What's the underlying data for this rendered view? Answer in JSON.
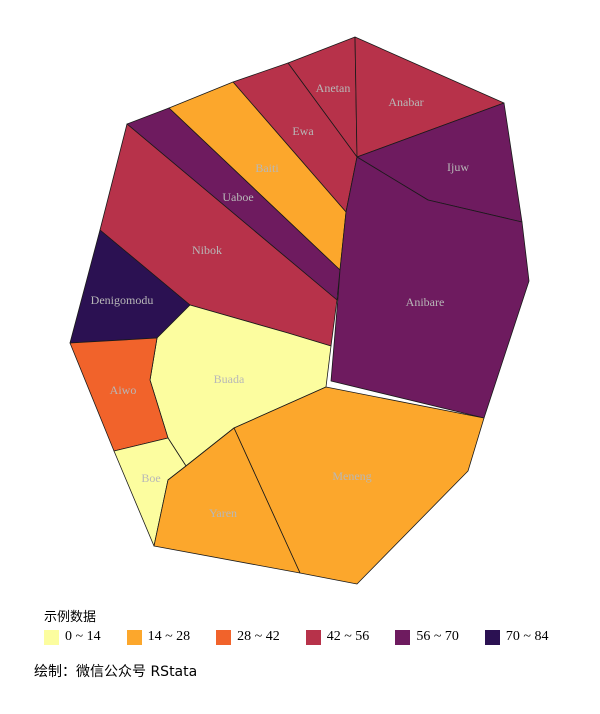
{
  "map": {
    "regions": [
      {
        "name": "Anetan",
        "class": 3
      },
      {
        "name": "Anabar",
        "class": 3
      },
      {
        "name": "Ewa",
        "class": 3
      },
      {
        "name": "Ijuw",
        "class": 4
      },
      {
        "name": "Baiti",
        "class": 1
      },
      {
        "name": "Uaboe",
        "class": 4
      },
      {
        "name": "Nibok",
        "class": 3
      },
      {
        "name": "Anibare",
        "class": 4
      },
      {
        "name": "Denigomodu",
        "class": 5
      },
      {
        "name": "Buada",
        "class": 0
      },
      {
        "name": "Aiwo",
        "class": 2
      },
      {
        "name": "Meneng",
        "class": 1
      },
      {
        "name": "Boe",
        "class": 0
      },
      {
        "name": "Yaren",
        "class": 1
      }
    ],
    "border_color": "#1a1a1a"
  },
  "legend": {
    "title": "示例数据",
    "items": [
      {
        "label": "0 ~ 14",
        "color": "#fcfd9f"
      },
      {
        "label": "14 ~ 28",
        "color": "#fca72c"
      },
      {
        "label": "28 ~ 42",
        "color": "#f1632b"
      },
      {
        "label": "42 ~ 56",
        "color": "#b7324a"
      },
      {
        "label": "56 ~ 70",
        "color": "#6e1b5f"
      },
      {
        "label": "70 ~ 84",
        "color": "#2b1152"
      }
    ]
  },
  "caption": "绘制：微信公众号 RStata"
}
